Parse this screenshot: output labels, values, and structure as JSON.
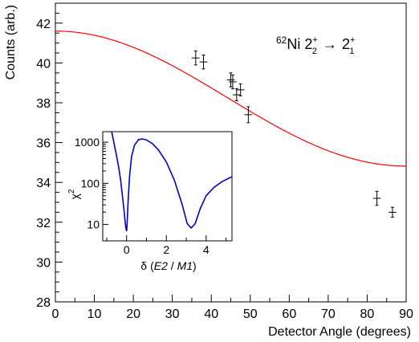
{
  "chart_data": [
    {
      "type": "scatter",
      "title": "62Ni 2+2 → 2+1",
      "title_parts": {
        "mass": "62",
        "element": "Ni",
        "initial": "2",
        "initial_sub": "2",
        "initial_sup": "+",
        "arrow": "→",
        "final": "2",
        "final_sub": "1",
        "final_sup": "+"
      },
      "xlabel": "Detector Angle (degrees)",
      "ylabel": "Counts (arb.)",
      "xlim": [
        0,
        90
      ],
      "ylim": [
        28,
        43
      ],
      "xticks": [
        0,
        10,
        20,
        30,
        40,
        50,
        60,
        70,
        80,
        90
      ],
      "yticks": [
        28,
        30,
        32,
        34,
        36,
        38,
        40,
        42
      ],
      "grid": false,
      "series": [
        {
          "kind": "points_with_errors",
          "color": "#000000",
          "points": [
            {
              "x": 36.0,
              "y": 40.25,
              "xerr": 1.0,
              "yerr": 0.35
            },
            {
              "x": 38.0,
              "y": 40.05,
              "xerr": 1.0,
              "yerr": 0.35
            },
            {
              "x": 45.0,
              "y": 39.15,
              "xerr": 1.0,
              "yerr": 0.35
            },
            {
              "x": 45.5,
              "y": 39.05,
              "xerr": 1.0,
              "yerr": 0.35
            },
            {
              "x": 46.5,
              "y": 38.4,
              "xerr": 1.0,
              "yerr": 0.3
            },
            {
              "x": 47.5,
              "y": 38.65,
              "xerr": 1.0,
              "yerr": 0.3
            },
            {
              "x": 49.5,
              "y": 37.4,
              "xerr": 1.0,
              "yerr": 0.4
            },
            {
              "x": 82.5,
              "y": 33.2,
              "xerr": 1.0,
              "yerr": 0.35
            },
            {
              "x": 86.5,
              "y": 32.5,
              "xerr": 1.0,
              "yerr": 0.25
            }
          ]
        },
        {
          "kind": "fit_curve",
          "color": "#ff0000",
          "model": {
            "a0": 37.05,
            "a2": 4.5,
            "a4": 0.05,
            "x_range": [
              0,
              90
            ]
          }
        }
      ]
    },
    {
      "type": "line",
      "inset": true,
      "xlabel": "δ (E2 / M1)",
      "xlabel_parts": {
        "delta": "δ",
        "open": "(",
        "e2": "E2",
        "sep": " / ",
        "m1": "M1",
        "close": ")"
      },
      "ylabel": "χ2",
      "ylabel_parts": {
        "chi": "χ",
        "sup": "2"
      },
      "xlim": [
        -1.2,
        5.3
      ],
      "ylim": [
        4,
        1800
      ],
      "yscale": "log",
      "xticks": [
        0,
        2,
        4
      ],
      "yticks": [
        10,
        100,
        1000
      ],
      "ytick_labels": [
        "10",
        "100",
        "1000"
      ],
      "minor_yticks": [
        20,
        30,
        40,
        50,
        60,
        70,
        80,
        90,
        200,
        300,
        400,
        500,
        600,
        700,
        800,
        900
      ],
      "series": [
        {
          "color": "#0000cc",
          "x": [
            -0.75,
            -0.55,
            -0.4,
            -0.3,
            -0.2,
            -0.12,
            -0.06,
            -0.02,
            0.0,
            0.02,
            0.08,
            0.15,
            0.25,
            0.4,
            0.6,
            0.8,
            1.0,
            1.3,
            1.6,
            2.0,
            2.4,
            2.8,
            3.05,
            3.25,
            3.45,
            3.7,
            4.0,
            4.4,
            4.8,
            5.3
          ],
          "y": [
            1800,
            600,
            250,
            120,
            45,
            20,
            10,
            7.5,
            7,
            9,
            40,
            150,
            450,
            850,
            1150,
            1200,
            1130,
            920,
            650,
            330,
            120,
            30,
            10.5,
            8.2,
            10.5,
            24,
            50,
            80,
            110,
            145
          ]
        }
      ]
    }
  ]
}
